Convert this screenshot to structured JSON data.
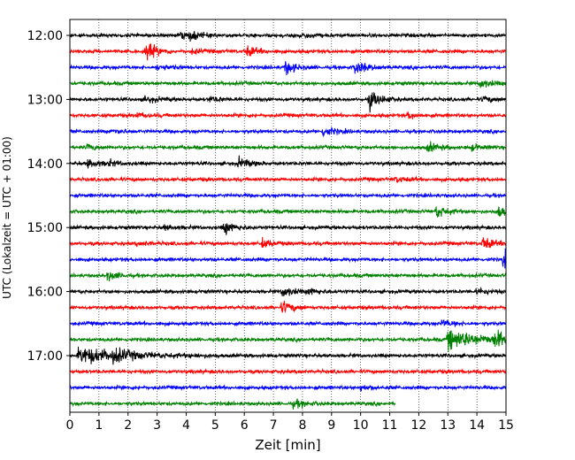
{
  "chart_data": {
    "type": "line",
    "title": "",
    "xlabel": "Zeit  [min]",
    "ylabel": "UTC (Lokalzeit = UTC + 01:00)",
    "xlim": [
      0,
      15
    ],
    "x_ticks": [
      "0",
      "1",
      "2",
      "3",
      "4",
      "5",
      "6",
      "7",
      "8",
      "9",
      "10",
      "11",
      "12",
      "13",
      "14",
      "15"
    ],
    "y_tick_labels": [
      "12:00",
      "13:00",
      "14:00",
      "15:00",
      "16:00",
      "17:00"
    ],
    "grid": "vertical dotted lines at each minute",
    "color_cycle": [
      "#000000",
      "#ff0000",
      "#0000ff",
      "#008000"
    ],
    "traces": [
      {
        "start": "12:00",
        "color": "#000000",
        "end_min": 15,
        "events": [
          {
            "t": 4.1,
            "amp": 0.55
          },
          {
            "t": 3.8,
            "amp": 0.35
          },
          {
            "t": 7.9,
            "amp": 0.35
          }
        ]
      },
      {
        "start": "12:15",
        "color": "#ff0000",
        "end_min": 15,
        "events": [
          {
            "t": 2.6,
            "amp": 1.3
          },
          {
            "t": 6.1,
            "amp": 0.65
          },
          {
            "t": 4.2,
            "amp": 0.3
          }
        ]
      },
      {
        "start": "12:30",
        "color": "#0000ff",
        "end_min": 15,
        "events": [
          {
            "t": 7.4,
            "amp": 0.85
          },
          {
            "t": 9.8,
            "amp": 1.0
          },
          {
            "t": 3.0,
            "amp": 0.35
          }
        ]
      },
      {
        "start": "12:45",
        "color": "#008000",
        "end_min": 15,
        "events": [
          {
            "t": 14.1,
            "amp": 0.6
          }
        ]
      },
      {
        "start": "13:00",
        "color": "#000000",
        "end_min": 15,
        "events": [
          {
            "t": 10.3,
            "amp": 1.2
          },
          {
            "t": 2.6,
            "amp": 0.45
          },
          {
            "t": 4.8,
            "amp": 0.35
          },
          {
            "t": 14.2,
            "amp": 0.35
          }
        ]
      },
      {
        "start": "13:15",
        "color": "#ff0000",
        "end_min": 15,
        "events": [
          {
            "t": 11.6,
            "amp": 0.45
          },
          {
            "t": 2.3,
            "amp": 0.3
          }
        ]
      },
      {
        "start": "13:30",
        "color": "#0000ff",
        "end_min": 15,
        "events": [
          {
            "t": 8.7,
            "amp": 0.7
          },
          {
            "t": 1.4,
            "amp": 0.3
          }
        ]
      },
      {
        "start": "13:45",
        "color": "#008000",
        "end_min": 15,
        "events": [
          {
            "t": 12.3,
            "amp": 0.6
          },
          {
            "t": 0.6,
            "amp": 0.35
          },
          {
            "t": 13.8,
            "amp": 0.35
          }
        ]
      },
      {
        "start": "14:00",
        "color": "#000000",
        "end_min": 15,
        "events": [
          {
            "t": 0.6,
            "amp": 0.55
          },
          {
            "t": 5.8,
            "amp": 0.65
          },
          {
            "t": 1.3,
            "amp": 0.35
          }
        ]
      },
      {
        "start": "14:15",
        "color": "#ff0000",
        "end_min": 15,
        "events": [
          {
            "t": 11.2,
            "amp": 0.35
          }
        ]
      },
      {
        "start": "14:30",
        "color": "#0000ff",
        "end_min": 15,
        "events": []
      },
      {
        "start": "14:45",
        "color": "#008000",
        "end_min": 15,
        "events": [
          {
            "t": 12.6,
            "amp": 0.85
          },
          {
            "t": 14.7,
            "amp": 0.7
          }
        ]
      },
      {
        "start": "15:00",
        "color": "#000000",
        "end_min": 15,
        "events": [
          {
            "t": 5.3,
            "amp": 0.85
          },
          {
            "t": 3.2,
            "amp": 0.3
          }
        ]
      },
      {
        "start": "15:15",
        "color": "#ff0000",
        "end_min": 15,
        "events": [
          {
            "t": 6.6,
            "amp": 0.6
          },
          {
            "t": 14.2,
            "amp": 0.85
          },
          {
            "t": 2.3,
            "amp": 0.3
          }
        ]
      },
      {
        "start": "15:30",
        "color": "#0000ff",
        "end_min": 15,
        "events": [
          {
            "t": 14.9,
            "amp": 1.0
          }
        ]
      },
      {
        "start": "15:45",
        "color": "#008000",
        "end_min": 15,
        "events": [
          {
            "t": 1.3,
            "amp": 0.6
          }
        ]
      },
      {
        "start": "16:00",
        "color": "#000000",
        "end_min": 15,
        "events": [
          {
            "t": 7.3,
            "amp": 0.7
          },
          {
            "t": 8.2,
            "amp": 0.4
          },
          {
            "t": 14.0,
            "amp": 0.4
          }
        ]
      },
      {
        "start": "16:15",
        "color": "#ff0000",
        "end_min": 15,
        "events": [
          {
            "t": 7.3,
            "amp": 0.8
          }
        ]
      },
      {
        "start": "16:30",
        "color": "#0000ff",
        "end_min": 15,
        "events": [
          {
            "t": 12.8,
            "amp": 0.45
          }
        ]
      },
      {
        "start": "16:45",
        "color": "#008000",
        "end_min": 15,
        "events": [
          {
            "t": 13.0,
            "amp": 1.3,
            "dur": 1.2
          },
          {
            "t": 14.6,
            "amp": 0.9,
            "dur": 0.6
          }
        ]
      },
      {
        "start": "17:00",
        "color": "#000000",
        "end_min": 15,
        "events": [
          {
            "t": 0.3,
            "amp": 1.1,
            "dur": 1.6
          },
          {
            "t": 1.5,
            "amp": 0.6
          }
        ]
      },
      {
        "start": "17:15",
        "color": "#ff0000",
        "end_min": 15,
        "events": []
      },
      {
        "start": "17:30",
        "color": "#0000ff",
        "end_min": 15,
        "events": [
          {
            "t": 10.0,
            "amp": 0.35
          }
        ]
      },
      {
        "start": "17:45",
        "color": "#008000",
        "end_min": 11.2,
        "events": [
          {
            "t": 7.7,
            "amp": 0.55
          }
        ]
      }
    ]
  }
}
